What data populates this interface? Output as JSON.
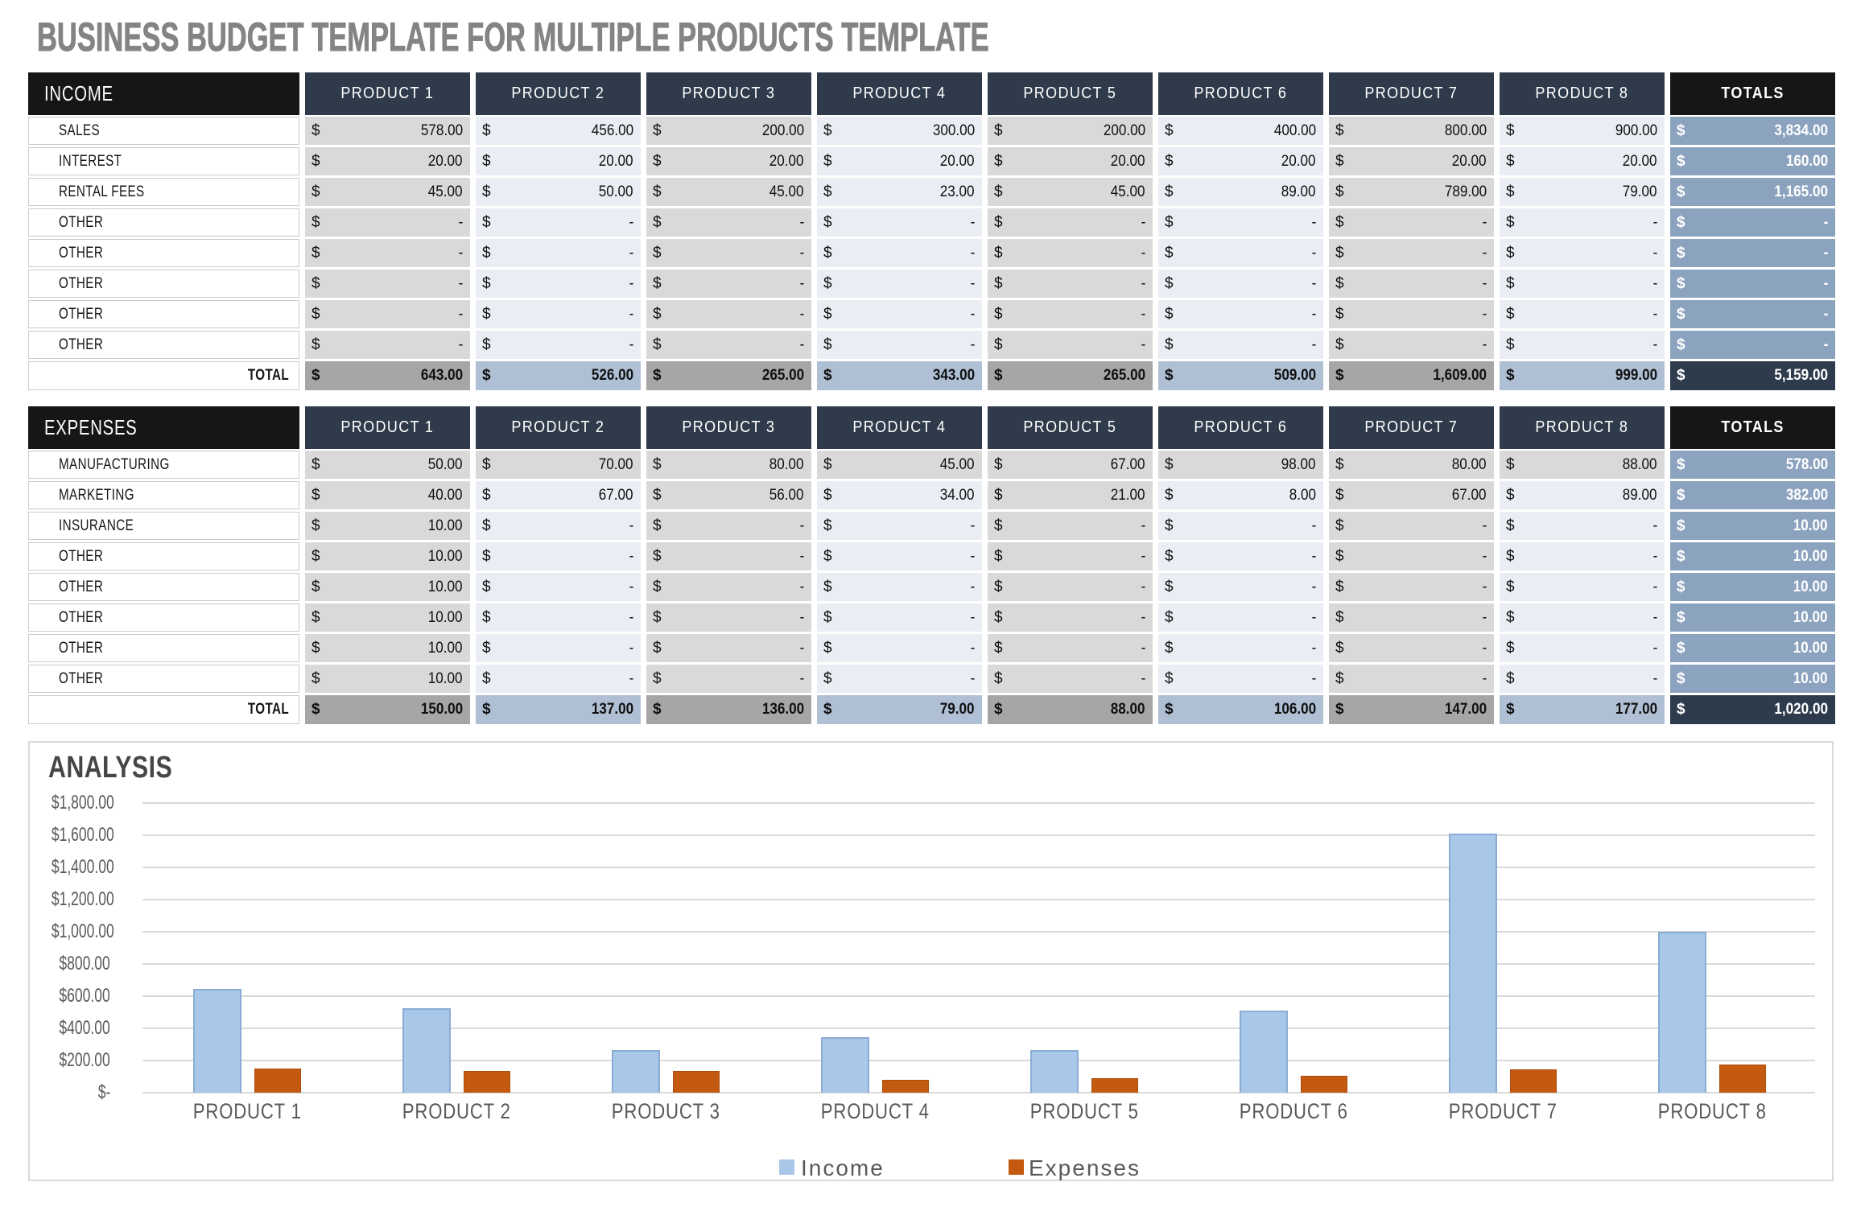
{
  "title": "BUSINESS BUDGET TEMPLATE FOR MULTIPLE PRODUCTS TEMPLATE",
  "income_table": {
    "section_label": "INCOME",
    "columns": [
      "PRODUCT 1",
      "PRODUCT 2",
      "PRODUCT 3",
      "PRODUCT 4",
      "PRODUCT 5",
      "PRODUCT 6",
      "PRODUCT 7",
      "PRODUCT 8",
      "TOTALS"
    ],
    "rows": [
      {
        "label": "SALES",
        "cells": [
          "578.00",
          "456.00",
          "200.00",
          "300.00",
          "200.00",
          "400.00",
          "800.00",
          "900.00"
        ],
        "total": "3,834.00"
      },
      {
        "label": "INTEREST",
        "cells": [
          "20.00",
          "20.00",
          "20.00",
          "20.00",
          "20.00",
          "20.00",
          "20.00",
          "20.00"
        ],
        "total": "160.00"
      },
      {
        "label": "RENTAL FEES",
        "cells": [
          "45.00",
          "50.00",
          "45.00",
          "23.00",
          "45.00",
          "89.00",
          "789.00",
          "79.00"
        ],
        "total": "1,165.00"
      },
      {
        "label": "OTHER",
        "cells": [
          "-",
          "-",
          "-",
          "-",
          "-",
          "-",
          "-",
          "-"
        ],
        "total": "-"
      },
      {
        "label": "OTHER",
        "cells": [
          "-",
          "-",
          "-",
          "-",
          "-",
          "-",
          "-",
          "-"
        ],
        "total": "-"
      },
      {
        "label": "OTHER",
        "cells": [
          "-",
          "-",
          "-",
          "-",
          "-",
          "-",
          "-",
          "-"
        ],
        "total": "-"
      },
      {
        "label": "OTHER",
        "cells": [
          "-",
          "-",
          "-",
          "-",
          "-",
          "-",
          "-",
          "-"
        ],
        "total": "-"
      },
      {
        "label": "OTHER",
        "cells": [
          "-",
          "-",
          "-",
          "-",
          "-",
          "-",
          "-",
          "-"
        ],
        "total": "-"
      }
    ],
    "total_row": {
      "label": "TOTAL",
      "cells": [
        "643.00",
        "526.00",
        "265.00",
        "343.00",
        "265.00",
        "509.00",
        "1,609.00",
        "999.00"
      ],
      "total": "5,159.00"
    },
    "first_row_all_gray": false
  },
  "expenses_table": {
    "section_label": "EXPENSES",
    "columns": [
      "PRODUCT 1",
      "PRODUCT 2",
      "PRODUCT 3",
      "PRODUCT 4",
      "PRODUCT 5",
      "PRODUCT 6",
      "PRODUCT 7",
      "PRODUCT 8",
      "TOTALS"
    ],
    "rows": [
      {
        "label": "MANUFACTURING",
        "cells": [
          "50.00",
          "70.00",
          "80.00",
          "45.00",
          "67.00",
          "98.00",
          "80.00",
          "88.00"
        ],
        "total": "578.00"
      },
      {
        "label": "MARKETING",
        "cells": [
          "40.00",
          "67.00",
          "56.00",
          "34.00",
          "21.00",
          "8.00",
          "67.00",
          "89.00"
        ],
        "total": "382.00"
      },
      {
        "label": "INSURANCE",
        "cells": [
          "10.00",
          "-",
          "-",
          "-",
          "-",
          "-",
          "-",
          "-"
        ],
        "total": "10.00"
      },
      {
        "label": "OTHER",
        "cells": [
          "10.00",
          "-",
          "-",
          "-",
          "-",
          "-",
          "-",
          "-"
        ],
        "total": "10.00"
      },
      {
        "label": "OTHER",
        "cells": [
          "10.00",
          "-",
          "-",
          "-",
          "-",
          "-",
          "-",
          "-"
        ],
        "total": "10.00"
      },
      {
        "label": "OTHER",
        "cells": [
          "10.00",
          "-",
          "-",
          "-",
          "-",
          "-",
          "-",
          "-"
        ],
        "total": "10.00"
      },
      {
        "label": "OTHER",
        "cells": [
          "10.00",
          "-",
          "-",
          "-",
          "-",
          "-",
          "-",
          "-"
        ],
        "total": "10.00"
      },
      {
        "label": "OTHER",
        "cells": [
          "10.00",
          "-",
          "-",
          "-",
          "-",
          "-",
          "-",
          "-"
        ],
        "total": "10.00"
      }
    ],
    "total_row": {
      "label": "TOTAL",
      "cells": [
        "150.00",
        "137.00",
        "136.00",
        "79.00",
        "88.00",
        "106.00",
        "147.00",
        "177.00"
      ],
      "total": "1,020.00"
    },
    "first_row_all_gray": true
  },
  "analysis": {
    "title": "ANALYSIS",
    "currency_prefix": "$",
    "legend": [
      {
        "label": "Income",
        "color": "#A9C7E8"
      },
      {
        "label": "Expenses",
        "color": "#C45A10"
      }
    ]
  },
  "chart_data": {
    "type": "bar",
    "categories": [
      "PRODUCT 1",
      "PRODUCT 2",
      "PRODUCT 3",
      "PRODUCT 4",
      "PRODUCT 5",
      "PRODUCT 6",
      "PRODUCT 7",
      "PRODUCT 8"
    ],
    "series": [
      {
        "name": "Income",
        "color": "#A9C7E8",
        "values": [
          643,
          526,
          265,
          343,
          265,
          509,
          1609,
          999
        ]
      },
      {
        "name": "Expenses",
        "color": "#C45A10",
        "values": [
          150,
          137,
          136,
          79,
          88,
          106,
          147,
          177
        ]
      }
    ],
    "title": "ANALYSIS",
    "xlabel": "",
    "ylabel": "",
    "ylim": [
      0,
      1800
    ],
    "ytick_step": 200,
    "ytick_labels": [
      "$-",
      "$200.00",
      "$400.00",
      "$600.00",
      "$800.00",
      "$1,000.00",
      "$1,200.00",
      "$1,400.00",
      "$1,600.00",
      "$1,800.00"
    ],
    "grid": true,
    "legend_position": "bottom"
  }
}
